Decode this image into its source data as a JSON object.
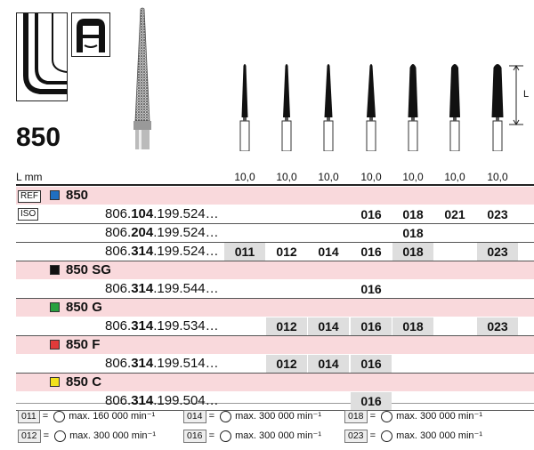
{
  "product_title": "850",
  "length_header": "L mm",
  "dimension_letter": "L",
  "lengths": [
    "10,0",
    "10,0",
    "10,0",
    "10,0",
    "10,0",
    "10,0",
    "10,0"
  ],
  "tags": {
    "ref": "REF",
    "iso": "ISO"
  },
  "sections": [
    {
      "label": "850",
      "color": "#1f6fc0",
      "rows": [
        {
          "pre": "806.",
          "mid": "104",
          "post": ".199.524…",
          "cells": [
            "",
            "",
            "",
            "016",
            "018",
            "021",
            "023"
          ],
          "gray": [
            false,
            false,
            false,
            false,
            false,
            false,
            false
          ]
        },
        {
          "pre": "806.",
          "mid": "204",
          "post": ".199.524…",
          "cells": [
            "",
            "",
            "",
            "",
            "018",
            "",
            ""
          ],
          "gray": [
            false,
            false,
            false,
            false,
            false,
            false,
            false
          ]
        },
        {
          "pre": "806.",
          "mid": "314",
          "post": ".199.524…",
          "cells": [
            "011",
            "012",
            "014",
            "016",
            "018",
            "",
            "023"
          ],
          "gray": [
            true,
            false,
            false,
            false,
            true,
            false,
            true
          ]
        }
      ]
    },
    {
      "label": "850 SG",
      "color": "#111111",
      "rows": [
        {
          "pre": "806.",
          "mid": "314",
          "post": ".199.544…",
          "cells": [
            "",
            "",
            "",
            "016",
            "",
            "",
            ""
          ],
          "gray": [
            false,
            false,
            false,
            false,
            false,
            false,
            false
          ]
        }
      ]
    },
    {
      "label": "850 G",
      "color": "#2aa040",
      "rows": [
        {
          "pre": "806.",
          "mid": "314",
          "post": ".199.534…",
          "cells": [
            "",
            "012",
            "014",
            "016",
            "018",
            "",
            "023"
          ],
          "gray": [
            false,
            true,
            true,
            true,
            true,
            false,
            true
          ]
        }
      ]
    },
    {
      "label": "850 F",
      "color": "#e03a3a",
      "rows": [
        {
          "pre": "806.",
          "mid": "314",
          "post": ".199.514…",
          "cells": [
            "",
            "012",
            "014",
            "016",
            "",
            "",
            ""
          ],
          "gray": [
            false,
            true,
            true,
            true,
            false,
            false,
            false
          ]
        }
      ]
    },
    {
      "label": "850 C",
      "color": "#f3e21c",
      "rows": [
        {
          "pre": "806.",
          "mid": "314",
          "post": ".199.504…",
          "cells": [
            "",
            "",
            "",
            "016",
            "",
            "",
            ""
          ],
          "gray": [
            false,
            false,
            false,
            true,
            false,
            false,
            false
          ]
        }
      ]
    }
  ],
  "legend": [
    {
      "code": "011",
      "text": "max. 160 000 min⁻¹"
    },
    {
      "code": "014",
      "text": "max. 300 000 min⁻¹"
    },
    {
      "code": "018",
      "text": "max. 300 000 min⁻¹"
    },
    {
      "code": "012",
      "text": "max. 300 000 min⁻¹"
    },
    {
      "code": "016",
      "text": "max. 300 000 min⁻¹"
    },
    {
      "code": "023",
      "text": "max. 300 000 min⁻¹"
    }
  ]
}
